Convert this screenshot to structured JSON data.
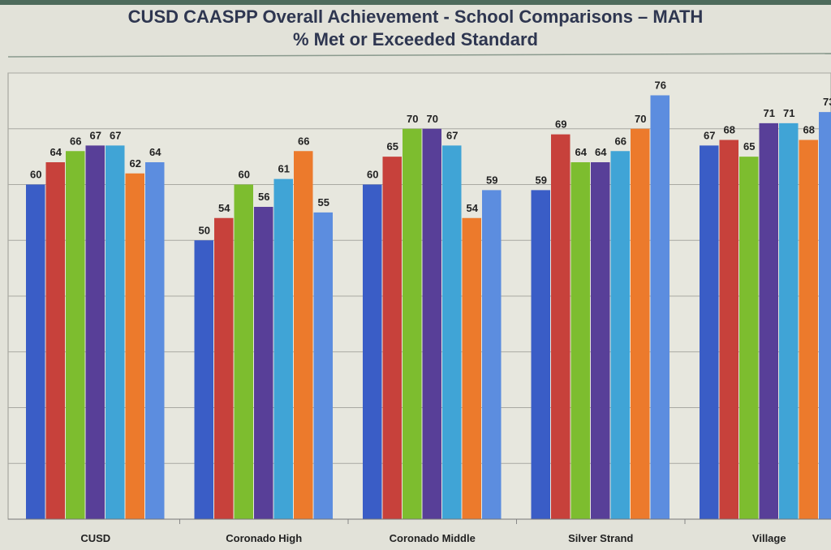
{
  "chart_data": {
    "type": "bar",
    "title": "CUSD CAASPP Overall Achievement - School Comparisons – MATH",
    "subtitle": "% Met or Exceeded Standard",
    "xlabel": "",
    "ylabel": "",
    "ylim": [
      0,
      80
    ],
    "grid": true,
    "legend": "none",
    "categories": [
      "CUSD",
      "Coronado High",
      "Coronado Middle",
      "Silver Strand",
      "Village"
    ],
    "series": [
      {
        "color": "#3a5dc6",
        "values": [
          60,
          50,
          60,
          59,
          67
        ]
      },
      {
        "color": "#c7413b",
        "values": [
          64,
          54,
          65,
          69,
          68
        ]
      },
      {
        "color": "#7dbd2f",
        "values": [
          66,
          60,
          70,
          64,
          65
        ]
      },
      {
        "color": "#583f98",
        "values": [
          67,
          56,
          70,
          64,
          71
        ]
      },
      {
        "color": "#40a4d6",
        "values": [
          67,
          61,
          67,
          66,
          71
        ]
      },
      {
        "color": "#ec7a2c",
        "values": [
          62,
          66,
          54,
          70,
          68
        ]
      },
      {
        "color": "#5c8ddf",
        "values": [
          64,
          55,
          59,
          76,
          73
        ]
      }
    ]
  }
}
